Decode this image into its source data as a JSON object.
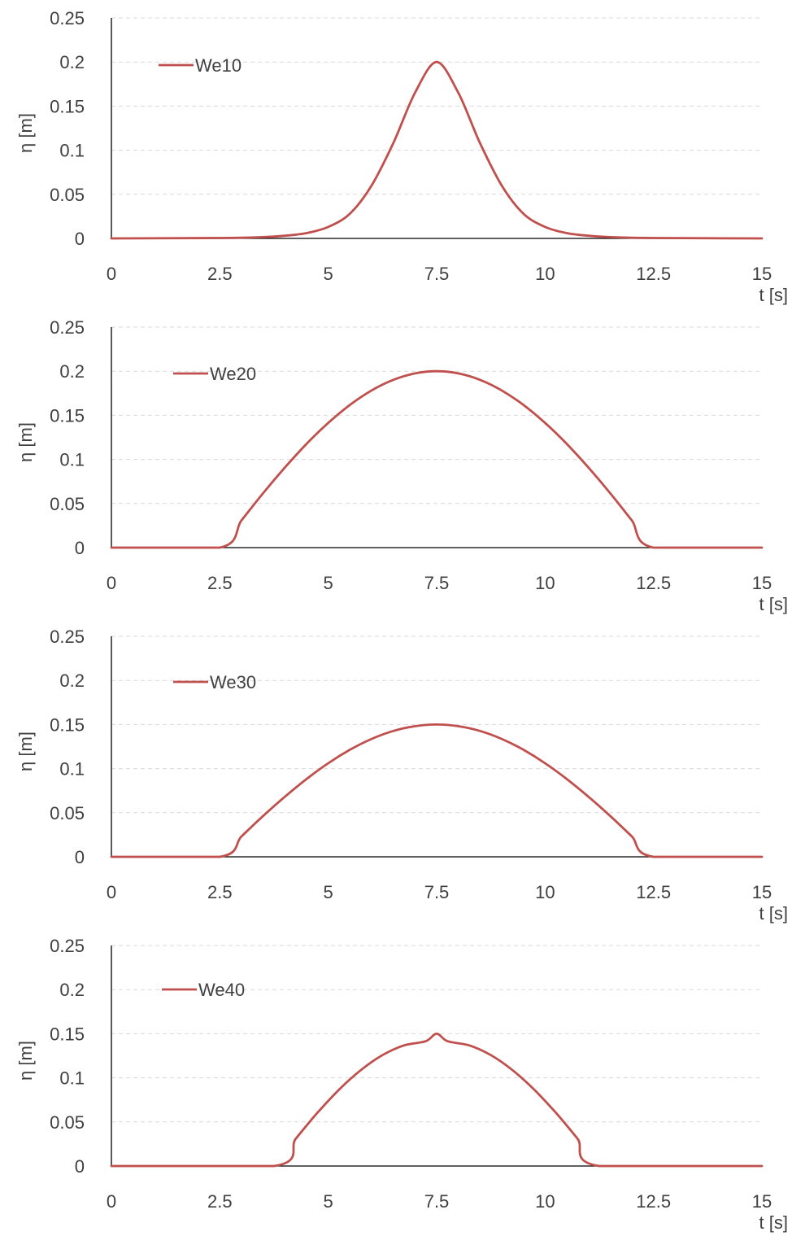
{
  "colors": {
    "series": "#c0504d",
    "grid": "#d9d9d9",
    "axis": "#000000",
    "text": "#404040"
  },
  "chart_data": [
    {
      "type": "line",
      "xlabel": "t [s]",
      "ylabel": "η  [m]",
      "xlim": [
        0,
        15
      ],
      "ylim": [
        0,
        0.25
      ],
      "xticks": [
        "0",
        "2.5",
        "5",
        "7.5",
        "10",
        "12.5",
        "15"
      ],
      "yticks": [
        "0",
        "0.05",
        "0.1",
        "0.15",
        "0.2",
        "0.25"
      ],
      "grid": "horizontal dashed",
      "legend_position": "top-left",
      "series": [
        {
          "name": "We10",
          "x": [
            0,
            2.5,
            3.5,
            4.0,
            4.5,
            5.0,
            5.5,
            6.0,
            6.5,
            7.0,
            7.5,
            8.0,
            8.5,
            9.0,
            9.5,
            10.0,
            10.5,
            11.0,
            11.5,
            12.5,
            15
          ],
          "y": [
            0,
            0.0005,
            0.0015,
            0.003,
            0.006,
            0.013,
            0.028,
            0.06,
            0.108,
            0.165,
            0.2,
            0.165,
            0.108,
            0.06,
            0.028,
            0.013,
            0.006,
            0.003,
            0.0015,
            0.0005,
            0
          ]
        }
      ]
    },
    {
      "type": "line",
      "xlabel": "t [s]",
      "ylabel": "η  [m]",
      "xlim": [
        0,
        15
      ],
      "ylim": [
        0,
        0.25
      ],
      "xticks": [
        "0",
        "2.5",
        "5",
        "7.5",
        "10",
        "12.5",
        "15"
      ],
      "yticks": [
        "0",
        "0.05",
        "0.1",
        "0.15",
        "0.2",
        "0.25"
      ],
      "grid": "horizontal dashed",
      "legend_position": "top-left",
      "series": [
        {
          "name": "We20",
          "x": [
            0,
            2.5,
            3.0,
            3.5,
            4.0,
            4.5,
            5.0,
            5.5,
            6.0,
            6.5,
            7.0,
            7.5,
            8.0,
            8.5,
            9.0,
            9.5,
            10.0,
            10.5,
            11.0,
            11.5,
            12.0,
            12.5,
            15
          ],
          "y": [
            0,
            0,
            0.0309,
            0.0618,
            0.0908,
            0.1176,
            0.1414,
            0.1618,
            0.1782,
            0.1902,
            0.1975,
            0.2,
            0.1975,
            0.1902,
            0.1782,
            0.1618,
            0.1414,
            0.1176,
            0.0908,
            0.0618,
            0.0309,
            0,
            0
          ]
        }
      ]
    },
    {
      "type": "line",
      "xlabel": "t [s]",
      "ylabel": "η  [m]",
      "xlim": [
        0,
        15
      ],
      "ylim": [
        0,
        0.25
      ],
      "xticks": [
        "0",
        "2.5",
        "5",
        "7.5",
        "10",
        "12.5",
        "15"
      ],
      "yticks": [
        "0",
        "0.05",
        "0.1",
        "0.15",
        "0.2",
        "0.25"
      ],
      "grid": "horizontal dashed",
      "legend_position": "top-left",
      "series": [
        {
          "name": "We30",
          "x": [
            0,
            2.5,
            3.0,
            3.5,
            4.0,
            4.5,
            5.0,
            5.5,
            6.0,
            6.5,
            7.0,
            7.5,
            8.0,
            8.5,
            9.0,
            9.5,
            10.0,
            10.5,
            11.0,
            11.5,
            12.0,
            12.5,
            15
          ],
          "y": [
            0,
            0,
            0.0232,
            0.0464,
            0.0681,
            0.0882,
            0.1061,
            0.1214,
            0.1337,
            0.1427,
            0.1481,
            0.15,
            0.1481,
            0.1427,
            0.1337,
            0.1214,
            0.1061,
            0.0882,
            0.0681,
            0.0464,
            0.0232,
            0,
            0
          ]
        }
      ]
    },
    {
      "type": "line",
      "xlabel": "t [s]",
      "ylabel": "η  [m]",
      "xlim": [
        0,
        15
      ],
      "ylim": [
        0,
        0.25
      ],
      "xticks": [
        "0",
        "2.5",
        "5",
        "7.5",
        "10",
        "12.5",
        "15"
      ],
      "yticks": [
        "0",
        "0.05",
        "0.1",
        "0.15",
        "0.2",
        "0.25"
      ],
      "grid": "horizontal dashed",
      "legend_position": "top-left",
      "series": [
        {
          "name": "We40",
          "x": [
            0,
            3.75,
            4.25,
            4.75,
            5.25,
            5.75,
            6.25,
            6.75,
            7.25,
            7.5,
            7.75,
            8.25,
            8.75,
            9.25,
            9.75,
            10.25,
            10.75,
            11.25,
            15
          ],
          "y": [
            0,
            0,
            0.0309,
            0.0603,
            0.0866,
            0.1087,
            0.1257,
            0.1368,
            0.1415,
            0.15,
            0.1415,
            0.1368,
            0.1257,
            0.1087,
            0.0866,
            0.0603,
            0.0309,
            0,
            0
          ]
        }
      ]
    }
  ]
}
